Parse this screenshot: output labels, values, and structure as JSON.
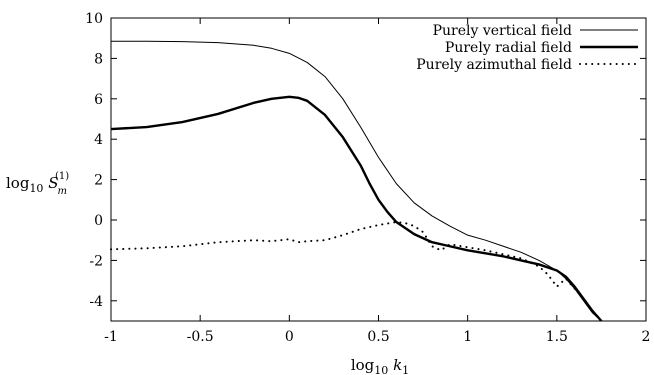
{
  "chart_data": {
    "type": "line",
    "xlabel": "log10 k1",
    "ylabel": "log10 S_m^(1)",
    "xlim": [
      -1,
      2
    ],
    "ylim": [
      -5,
      10
    ],
    "x_ticks": [
      "-1",
      "-0.5",
      "0",
      "0.5",
      "1",
      "1.5",
      "2"
    ],
    "y_ticks": [
      "-4",
      "-2",
      "0",
      "2",
      "4",
      "6",
      "8",
      "10"
    ],
    "legend_position": "top-right",
    "grid": false,
    "series": [
      {
        "name": "Purely vertical field",
        "style": "thin-solid",
        "x": [
          -1.0,
          -0.8,
          -0.6,
          -0.4,
          -0.2,
          -0.1,
          0.0,
          0.1,
          0.2,
          0.3,
          0.4,
          0.5,
          0.6,
          0.7,
          0.8,
          0.9,
          1.0,
          1.1,
          1.2,
          1.3,
          1.4,
          1.5,
          1.55,
          1.6,
          1.65,
          1.7,
          1.75
        ],
        "y": [
          8.85,
          8.85,
          8.83,
          8.78,
          8.65,
          8.5,
          8.25,
          7.8,
          7.1,
          6.0,
          4.6,
          3.1,
          1.8,
          0.85,
          0.2,
          -0.3,
          -0.75,
          -1.0,
          -1.3,
          -1.6,
          -2.0,
          -2.5,
          -2.9,
          -3.4,
          -4.0,
          -4.6,
          -5.0
        ]
      },
      {
        "name": "Purely radial field",
        "style": "thick-solid",
        "x": [
          -1.0,
          -0.8,
          -0.6,
          -0.4,
          -0.2,
          -0.1,
          0.0,
          0.05,
          0.1,
          0.2,
          0.3,
          0.4,
          0.45,
          0.5,
          0.55,
          0.6,
          0.7,
          0.8,
          0.9,
          1.0,
          1.1,
          1.2,
          1.3,
          1.4,
          1.5,
          1.55,
          1.6,
          1.65,
          1.7,
          1.75
        ],
        "y": [
          4.5,
          4.6,
          4.85,
          5.25,
          5.8,
          6.0,
          6.1,
          6.05,
          5.9,
          5.2,
          4.1,
          2.7,
          1.8,
          1.0,
          0.4,
          -0.1,
          -0.7,
          -1.1,
          -1.3,
          -1.5,
          -1.65,
          -1.8,
          -2.0,
          -2.2,
          -2.5,
          -2.8,
          -3.3,
          -3.9,
          -4.5,
          -5.0
        ]
      },
      {
        "name": "Purely azimuthal field",
        "style": "dotted",
        "x": [
          -1.0,
          -0.8,
          -0.6,
          -0.4,
          -0.3,
          -0.2,
          -0.1,
          0.0,
          0.05,
          0.1,
          0.2,
          0.3,
          0.4,
          0.5,
          0.6,
          0.65,
          0.7,
          0.75,
          0.8,
          0.85,
          0.9,
          1.0,
          1.1,
          1.2,
          1.3,
          1.4,
          1.45,
          1.5,
          1.55,
          1.6,
          1.65,
          1.7,
          1.75
        ],
        "y": [
          -1.45,
          -1.4,
          -1.3,
          -1.1,
          -1.05,
          -1.0,
          -1.05,
          -0.95,
          -1.1,
          -1.05,
          -1.0,
          -0.75,
          -0.45,
          -0.25,
          -0.1,
          -0.15,
          -0.3,
          -0.6,
          -1.3,
          -1.5,
          -1.2,
          -1.35,
          -1.5,
          -1.7,
          -1.9,
          -2.3,
          -2.7,
          -3.3,
          -2.9,
          -3.4,
          -3.9,
          -4.5,
          -5.0
        ]
      }
    ]
  }
}
